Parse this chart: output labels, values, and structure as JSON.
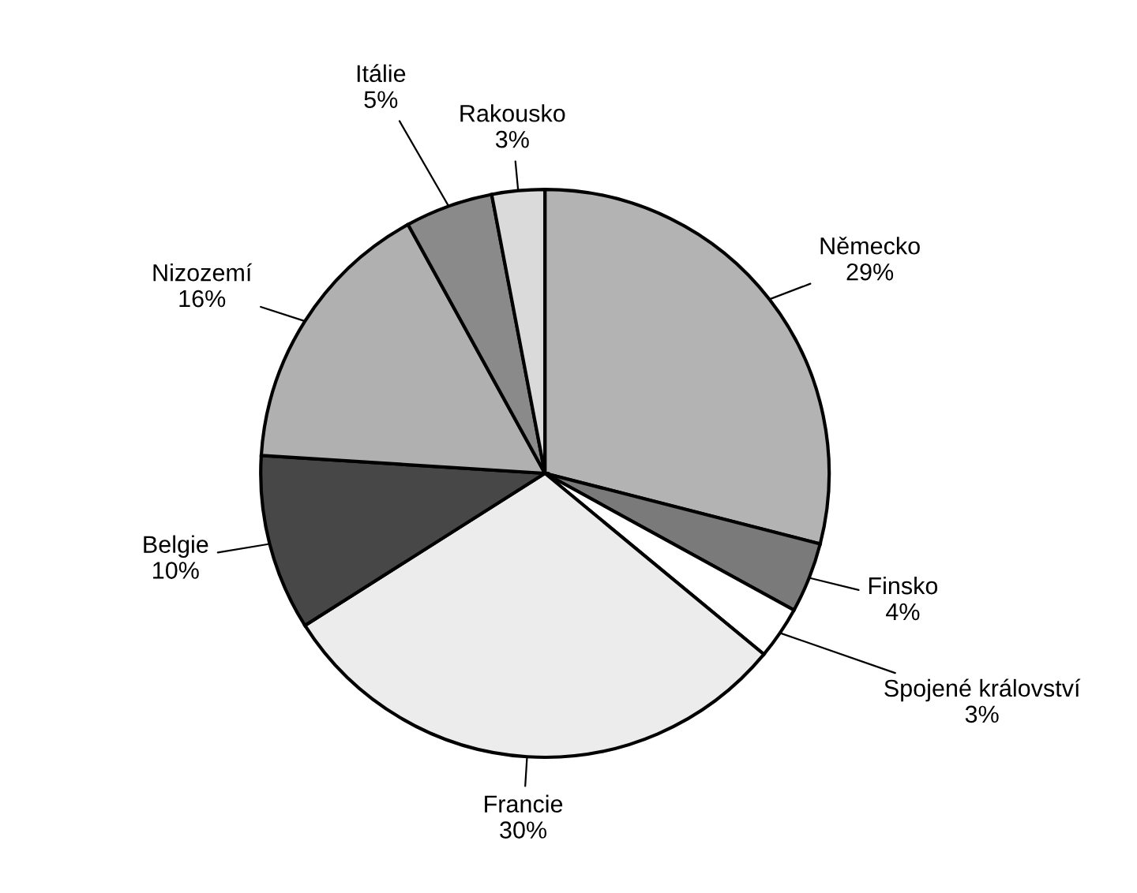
{
  "chart_data": {
    "type": "pie",
    "categories": [
      "Německo",
      "Finsko",
      "Spojené království",
      "Francie",
      "Belgie",
      "Nizozemí",
      "Itálie",
      "Rakousko"
    ],
    "values": [
      29,
      4,
      3,
      30,
      10,
      16,
      5,
      3
    ],
    "value_labels": [
      "29%",
      "4%",
      "3%",
      "30%",
      "10%",
      "16%",
      "5%",
      "3%"
    ],
    "colors": [
      "#b3b3b3",
      "#7a7a7a",
      "#ffffff",
      "#ececec",
      "#474747",
      "#b0b0b0",
      "#8a8a8a",
      "#dadada"
    ],
    "legend": false
  }
}
